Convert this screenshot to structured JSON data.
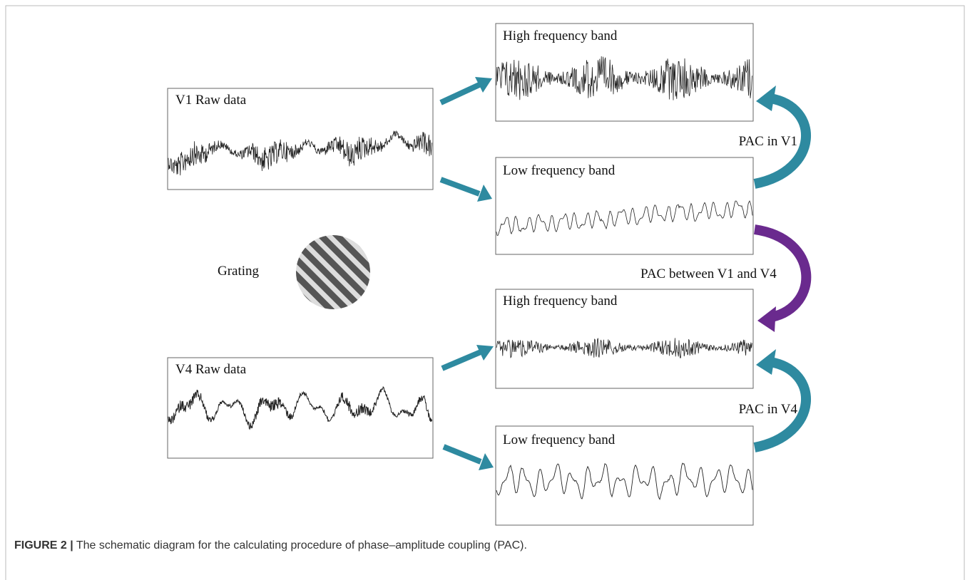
{
  "panels": {
    "v1_raw": {
      "label": "V1 Raw data"
    },
    "v1_high": {
      "label": "High frequency band"
    },
    "v1_low": {
      "label": "Low frequency band"
    },
    "v4_raw": {
      "label": "V4 Raw data"
    },
    "v4_high": {
      "label": "High frequency band"
    },
    "v4_low": {
      "label": "Low frequency band"
    }
  },
  "labels": {
    "grating": "Grating",
    "pac_v1": "PAC in V1",
    "pac_between": "PAC between V1 and V4",
    "pac_v4": "PAC in V4"
  },
  "caption": {
    "figure": "FIGURE 2 |",
    "text": "The schematic diagram for the calculating procedure of phase–amplitude coupling (PAC)."
  }
}
